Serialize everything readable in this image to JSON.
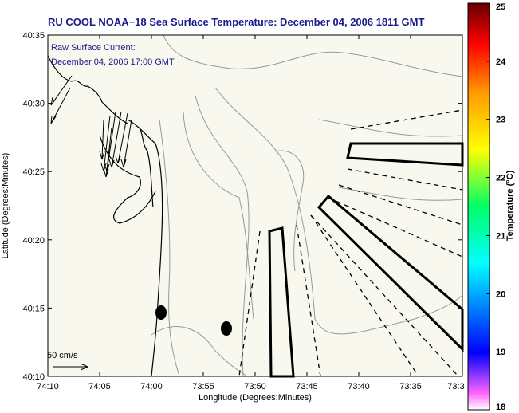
{
  "title": "RU COOL  NOAA−18  Sea Surface Temperature:  December 04, 2006 1811 GMT",
  "annotation": {
    "line1": "Raw Surface Current:",
    "line2": "December 04, 2006 17:00 GMT"
  },
  "scale_label": "50 cm/s",
  "axes": {
    "xlabel": "Longitude (Degrees:Minutes)",
    "ylabel": "Latitude (Degrees:Minutes)",
    "xticks": [
      "74:10",
      "74:05",
      "74:00",
      "73:55",
      "73:50",
      "73:45",
      "73:40",
      "73:35",
      "73:3"
    ],
    "yticks": [
      "40:35",
      "40:30",
      "40:25",
      "40:20",
      "40:15",
      "40:10"
    ]
  },
  "colorbar": {
    "label": "Temperature (°C)",
    "ticks": [
      "25",
      "24",
      "23",
      "22",
      "21",
      "20",
      "19",
      "18"
    ],
    "colors": [
      "#ff66ff",
      "#0000ff",
      "#00ffff",
      "#00ff66",
      "#ffff00",
      "#ff9900",
      "#ff0000",
      "#660000"
    ]
  },
  "colors": {
    "title": "#1a1a8c",
    "water": "#f8f8ef",
    "coast": "#000000",
    "bathymetry": "#999999"
  }
}
